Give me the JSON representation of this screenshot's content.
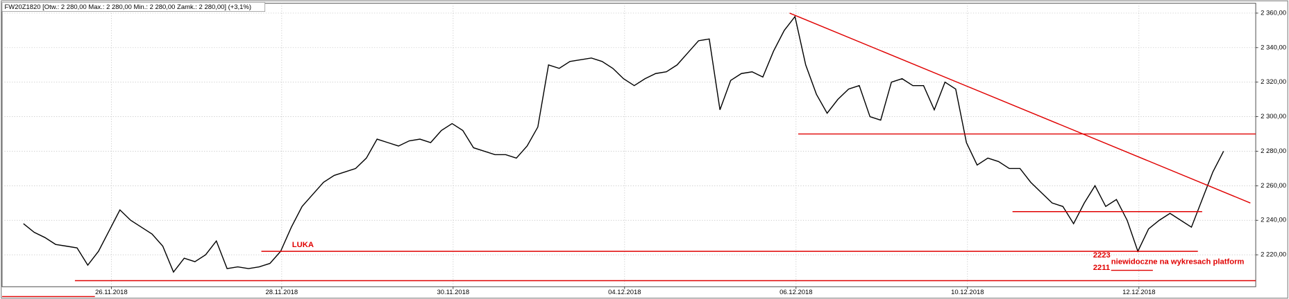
{
  "chart_data": {
    "type": "line",
    "title": "FW20Z1820 [Otw.: 2 280,00  Max.: 2 280,00  Min.: 2 280,00  Zamk.: 2 280,00]  (+3,1%)",
    "color": "#000000",
    "x": [
      -8,
      -7,
      -6,
      -5,
      -4,
      -3,
      -2,
      -1,
      0,
      1,
      2,
      3,
      4,
      5,
      6,
      7,
      8,
      9,
      10,
      11,
      12,
      13,
      14,
      15,
      16,
      17,
      18,
      19,
      20,
      21,
      22,
      23,
      24,
      25,
      26,
      27,
      28,
      29,
      30,
      31,
      32,
      33,
      34,
      35,
      36,
      37,
      38,
      39,
      40,
      41,
      42,
      43,
      44,
      45,
      46,
      47,
      48,
      49,
      50,
      51,
      52,
      53,
      54,
      55,
      56,
      57,
      58,
      59,
      60,
      61,
      62,
      63,
      64,
      65,
      66,
      67,
      68,
      69,
      70,
      71,
      72,
      73,
      74,
      75,
      76,
      77,
      78,
      79,
      80,
      81,
      82,
      83,
      84,
      85,
      86,
      87,
      88,
      89,
      90,
      91,
      92,
      93,
      94,
      95,
      96,
      97,
      98,
      99,
      100,
      101,
      102,
      103,
      104
    ],
    "values": [
      2238,
      2233,
      2230,
      2226,
      2225,
      2224,
      2214,
      2222,
      2234,
      2246,
      2240,
      2236,
      2232,
      2225,
      2210,
      2218,
      2216,
      2220,
      2228,
      2212,
      2213,
      2212,
      2213,
      2215,
      2222,
      2236,
      2248,
      2255,
      2262,
      2266,
      2268,
      2270,
      2276,
      2287,
      2285,
      2283,
      2286,
      2287,
      2285,
      2292,
      2296,
      2292,
      2282,
      2280,
      2278,
      2278,
      2276,
      2283,
      2294,
      2330,
      2328,
      2332,
      2333,
      2334,
      2332,
      2328,
      2322,
      2318,
      2322,
      2325,
      2326,
      2330,
      2337,
      2344,
      2345,
      2304,
      2321,
      2325,
      2326,
      2323,
      2338,
      2350,
      2358,
      2330,
      2313,
      2302,
      2310,
      2316,
      2318,
      2300,
      2298,
      2320,
      2322,
      2318,
      2318,
      2304,
      2320,
      2316,
      2285,
      2272,
      2276,
      2274,
      2270,
      2270,
      2262,
      2256,
      2250,
      2248,
      2238,
      2250,
      2260,
      2248,
      2252,
      2240,
      2222,
      2235,
      2240,
      2244,
      2240,
      2236,
      2252,
      2268,
      2280
    ],
    "xlim": [
      -10,
      107
    ],
    "xticks": [
      {
        "value": 0.2,
        "label": "26.11.2018"
      },
      {
        "value": 16.1,
        "label": "28.11.2018"
      },
      {
        "value": 32.1,
        "label": "30.11.2018"
      },
      {
        "value": 48.1,
        "label": "04.12.2018"
      },
      {
        "value": 64.1,
        "label": "06.12.2018"
      },
      {
        "value": 80.1,
        "label": "10.12.2018"
      },
      {
        "value": 96.1,
        "label": "12.12.2018"
      }
    ],
    "ylim": [
      2201.5,
      2365.7
    ],
    "yticks": [
      {
        "value": 2220,
        "label": "2 220,00"
      },
      {
        "value": 2240,
        "label": "2 240,00"
      },
      {
        "value": 2260,
        "label": "2 260,00"
      },
      {
        "value": 2280,
        "label": "2 280,00"
      },
      {
        "value": 2300,
        "label": "2 300,00"
      },
      {
        "value": 2320,
        "label": "2 320,00"
      },
      {
        "value": 2340,
        "label": "2 340,00"
      },
      {
        "value": 2360,
        "label": "2 360,00"
      }
    ],
    "grid": true,
    "reference_color": "#e00000",
    "reference_lines": [
      {
        "x": [
          63.5,
          106.5
        ],
        "y": [
          2360,
          2250
        ]
      },
      {
        "x": [
          64.3,
          107
        ],
        "y": [
          2290,
          2290
        ]
      },
      {
        "x": [
          84.3,
          102
        ],
        "y": [
          2245,
          2245
        ]
      },
      {
        "x": [
          14.2,
          101.6
        ],
        "y": [
          2222,
          2222
        ]
      },
      {
        "x": [
          -3.2,
          107
        ],
        "y": [
          2205,
          2205
        ]
      },
      {
        "x": [
          93.5,
          97.4
        ],
        "y": [
          2211,
          2211
        ]
      }
    ],
    "annotations": [
      "LUKA",
      "2223",
      "niewidoczne na wykresach platform",
      "2211"
    ]
  }
}
